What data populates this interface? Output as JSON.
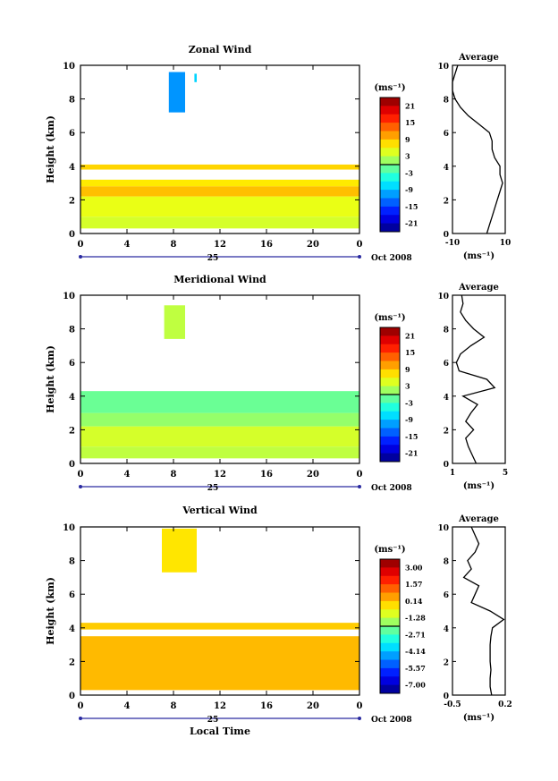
{
  "chart_data": [
    {
      "type": "heatmap",
      "title": "Zonal Wind",
      "ylabel": "Height (km)",
      "xlabel": "",
      "x_ticks": [
        "0",
        "4",
        "8",
        "12",
        "16",
        "20",
        "0"
      ],
      "y_ticks": [
        "0",
        "2",
        "4",
        "6",
        "8",
        "10"
      ],
      "xlim": [
        0,
        24
      ],
      "ylim": [
        0,
        10
      ],
      "date_label": "25",
      "month_label": "Oct 2008",
      "colorbar": {
        "unit": "(ms⁻¹)",
        "labels": [
          "21",
          "15",
          "9",
          "3",
          "-3",
          "-9",
          "-15",
          "-21"
        ],
        "range": [
          -24,
          24
        ]
      },
      "cells": [
        {
          "t0": 0.0,
          "t1": 24.0,
          "h0": 2.8,
          "h1": 3.2,
          "value": 7
        },
        {
          "t0": 0.0,
          "t1": 24.0,
          "h0": 2.2,
          "h1": 2.8,
          "value": 9
        },
        {
          "t0": 0.0,
          "t1": 24.0,
          "h0": 1.0,
          "h1": 2.2,
          "value": 5
        },
        {
          "t0": 0.0,
          "t1": 24.0,
          "h0": 0.3,
          "h1": 1.0,
          "value": 4
        },
        {
          "t0": 0.0,
          "t1": 24.0,
          "h0": 3.8,
          "h1": 4.1,
          "value": 8
        },
        {
          "t0": 7.6,
          "t1": 9.0,
          "h0": 7.2,
          "h1": 9.6,
          "value": -11
        },
        {
          "t0": 9.8,
          "t1": 10.0,
          "h0": 9.0,
          "h1": 9.5,
          "value": -8
        }
      ],
      "average": {
        "title": "Average",
        "unit": "(ms⁻¹)",
        "x_ticks": [
          "-10",
          "10"
        ],
        "xlim": [
          -10,
          10
        ],
        "height": [
          0.0,
          0.5,
          1.0,
          1.5,
          2.0,
          2.5,
          3.0,
          3.5,
          4.0,
          4.5,
          5.0,
          5.5,
          6.0,
          6.5,
          7.0,
          7.5,
          8.0,
          8.5,
          9.0,
          9.5,
          10.0
        ],
        "value": [
          3,
          4,
          5,
          6,
          7,
          8,
          9,
          8,
          8,
          6,
          5,
          5,
          4,
          0,
          -4,
          -7,
          -9,
          -10,
          -10,
          -9,
          -8
        ]
      }
    },
    {
      "type": "heatmap",
      "title": "Meridional Wind",
      "ylabel": "Height (km)",
      "xlabel": "",
      "x_ticks": [
        "0",
        "4",
        "8",
        "12",
        "16",
        "20",
        "0"
      ],
      "y_ticks": [
        "0",
        "2",
        "4",
        "6",
        "8",
        "10"
      ],
      "xlim": [
        0,
        24
      ],
      "ylim": [
        0,
        10
      ],
      "date_label": "25",
      "month_label": "Oct 2008",
      "colorbar": {
        "unit": "(ms⁻¹)",
        "labels": [
          "21",
          "15",
          "9",
          "3",
          "-3",
          "-9",
          "-15",
          "-21"
        ],
        "range": [
          -24,
          24
        ]
      },
      "cells": [
        {
          "t0": 0.0,
          "t1": 24.0,
          "h0": 2.2,
          "h1": 3.0,
          "value": 1
        },
        {
          "t0": 0.0,
          "t1": 24.0,
          "h0": 1.0,
          "h1": 2.2,
          "value": 4
        },
        {
          "t0": 0.0,
          "t1": 24.0,
          "h0": 0.3,
          "h1": 1.0,
          "value": 3
        },
        {
          "t0": 0.0,
          "t1": 24.0,
          "h0": 3.0,
          "h1": 4.3,
          "value": -1
        },
        {
          "t0": 7.2,
          "t1": 9.0,
          "h0": 7.4,
          "h1": 9.4,
          "value": 3
        }
      ],
      "average": {
        "title": "Average",
        "unit": "(ms⁻¹)",
        "x_ticks": [
          "1",
          "5"
        ],
        "xlim": [
          1,
          5
        ],
        "height": [
          0.0,
          0.5,
          1.0,
          1.5,
          2.0,
          2.5,
          3.0,
          3.5,
          4.0,
          4.5,
          5.0,
          5.5,
          6.0,
          6.5,
          7.0,
          7.5,
          8.0,
          8.5,
          9.0,
          9.5,
          10.0
        ],
        "value": [
          2.8,
          2.5,
          2.2,
          2.0,
          2.6,
          2.0,
          2.4,
          2.9,
          1.8,
          4.2,
          3.6,
          1.5,
          1.3,
          1.6,
          2.4,
          3.4,
          2.6,
          2.0,
          1.6,
          1.8,
          1.7
        ]
      }
    },
    {
      "type": "heatmap",
      "title": "Vertical Wind",
      "ylabel": "Height (km)",
      "xlabel": "Local Time",
      "x_ticks": [
        "0",
        "4",
        "8",
        "12",
        "16",
        "20",
        "0"
      ],
      "y_ticks": [
        "0",
        "2",
        "4",
        "6",
        "8",
        "10"
      ],
      "xlim": [
        0,
        24
      ],
      "ylim": [
        0,
        10
      ],
      "date_label": "25",
      "month_label": "Oct 2008",
      "colorbar": {
        "unit": "(ms⁻¹)",
        "labels": [
          "3.00",
          "1.57",
          "0.14",
          "-1.28",
          "-2.71",
          "-4.14",
          "-5.57",
          "-7.00"
        ],
        "range": [
          -7.7,
          3.7
        ]
      },
      "cells": [
        {
          "t0": 0.0,
          "t1": 24.0,
          "h0": 0.3,
          "h1": 3.5,
          "value": 0.2
        },
        {
          "t0": 0.0,
          "t1": 24.0,
          "h0": 3.9,
          "h1": 4.3,
          "value": 0.0
        },
        {
          "t0": 7.0,
          "t1": 10.0,
          "h0": 7.3,
          "h1": 9.9,
          "value": -0.3
        }
      ],
      "average": {
        "title": "Average",
        "unit": "(ms⁻¹)",
        "x_ticks": [
          "-0.5",
          "0.2"
        ],
        "xlim": [
          -0.5,
          0.2
        ],
        "height": [
          0.0,
          0.5,
          1.0,
          1.5,
          2.0,
          2.5,
          3.0,
          3.5,
          4.0,
          4.5,
          5.0,
          5.5,
          6.0,
          6.5,
          7.0,
          7.5,
          8.0,
          8.5,
          9.0,
          9.5,
          10.0
        ],
        "value": [
          0.02,
          0.0,
          0.0,
          0.01,
          0.0,
          0.0,
          0.0,
          0.01,
          0.03,
          0.18,
          0.0,
          -0.25,
          -0.2,
          -0.15,
          -0.35,
          -0.25,
          -0.3,
          -0.2,
          -0.15,
          -0.2,
          -0.25
        ]
      }
    }
  ]
}
